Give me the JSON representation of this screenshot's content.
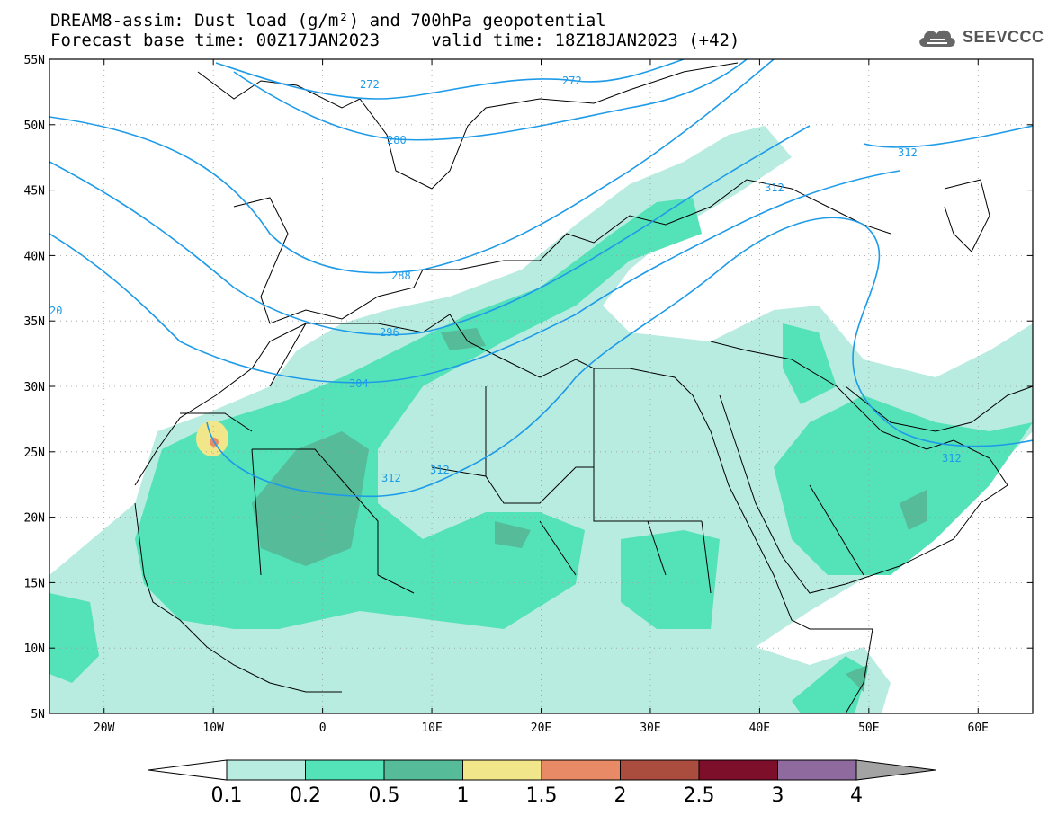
{
  "title": {
    "line1": "DREAM8-assim: Dust load (g/m²) and 700hPa geopotential",
    "line2": "Forecast base time: 00Z17JAN2023     valid time: 18Z18JAN2023 (+42)"
  },
  "logo": {
    "text": "SEEVCCC",
    "icon": "cloud-icon"
  },
  "map": {
    "extent": {
      "lon": [
        -25,
        65
      ],
      "lat": [
        5,
        55
      ]
    },
    "lat_labels": [
      "55N",
      "50N",
      "45N",
      "40N",
      "35N",
      "30N",
      "25N",
      "20N",
      "15N",
      "10N",
      "5N"
    ],
    "lon_labels": [
      "20W",
      "10W",
      "0",
      "10E",
      "20E",
      "30E",
      "40E",
      "50E",
      "60E"
    ],
    "contour_color": "#1e9be8",
    "contour_labels": [
      "272",
      "272",
      "280",
      "288",
      "296",
      "304",
      "312",
      "312",
      "312",
      "312",
      "312",
      "20"
    ]
  },
  "colorbar": {
    "labels": [
      "0.1",
      "0.2",
      "0.5",
      "1",
      "1.5",
      "2",
      "2.5",
      "3",
      "4"
    ],
    "colors": [
      "#ffffff",
      "#b8ece0",
      "#54e2b8",
      "#55bb98",
      "#f2e68a",
      "#e98a66",
      "#aa4d3f",
      "#7d0f2b",
      "#8e6a9e",
      "#a3a3a3"
    ]
  }
}
